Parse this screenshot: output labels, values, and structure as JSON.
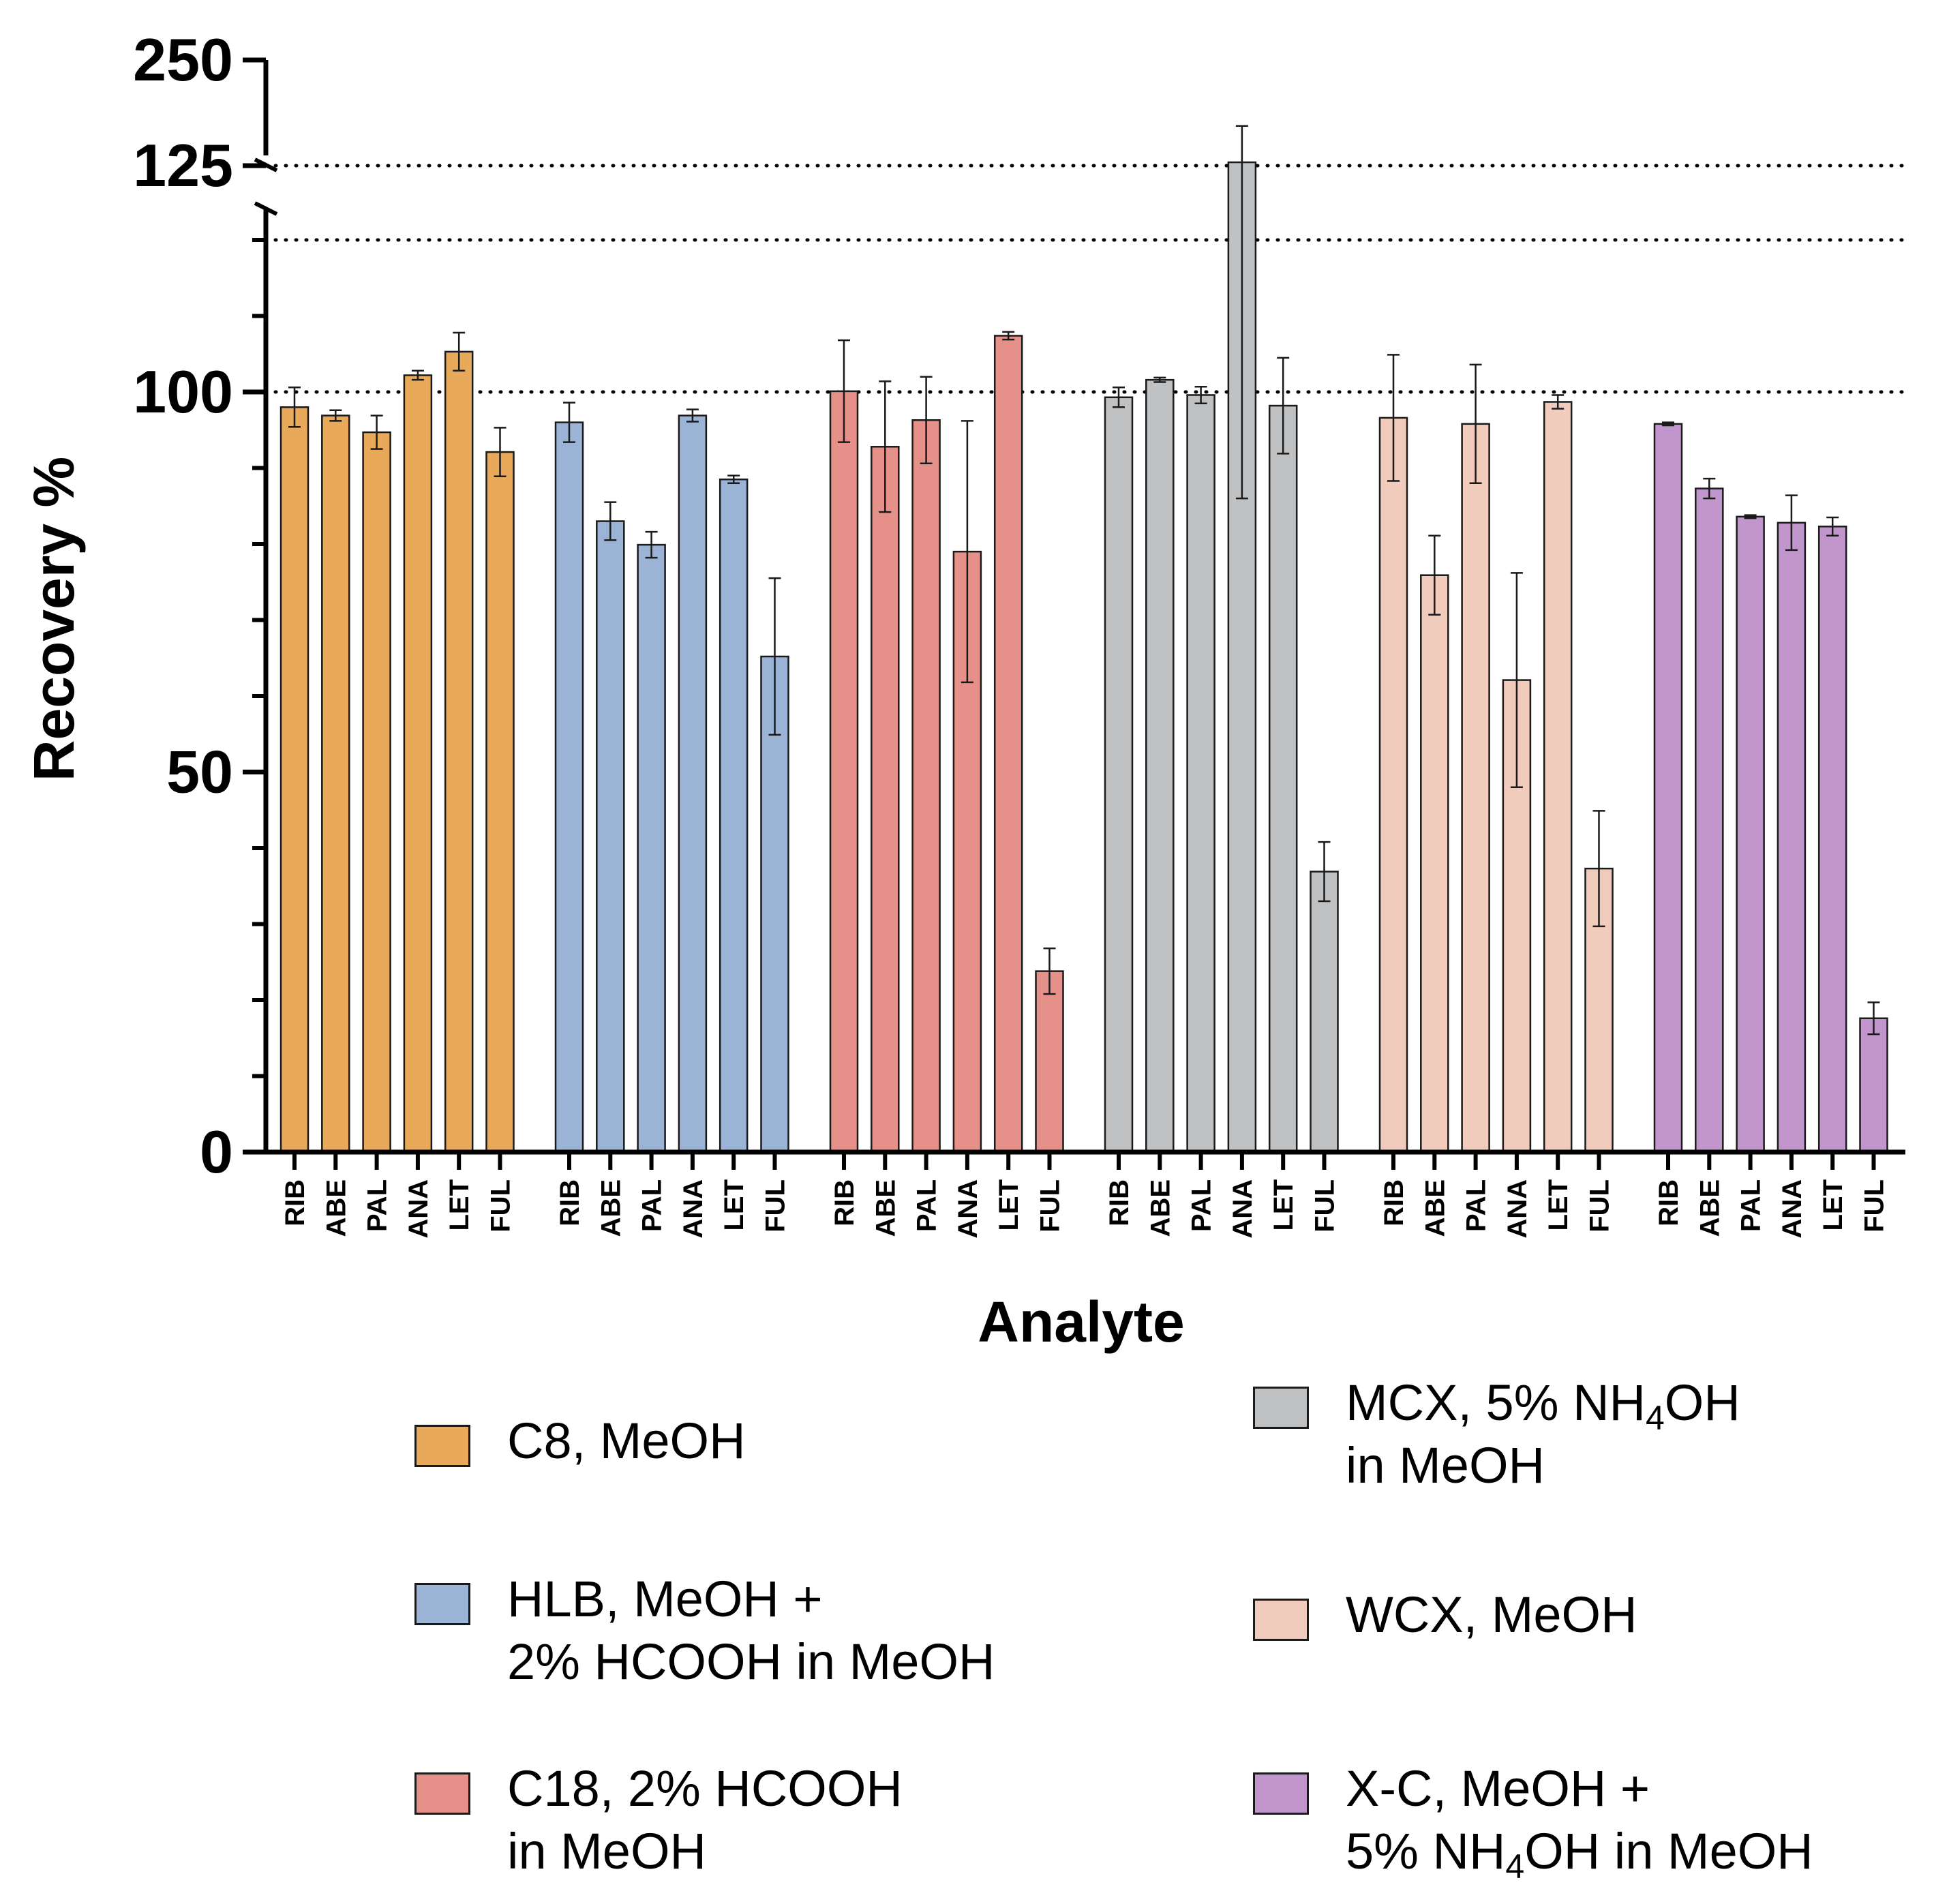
{
  "chart_data": {
    "type": "bar",
    "ylabel": "Recovery %",
    "xlabel": "Analyte",
    "y_axis": {
      "broken": true,
      "lower_range": [
        0,
        125
      ],
      "upper_range": [
        125,
        250
      ],
      "tick_labels": [
        "0",
        "50",
        "100",
        "125",
        "250"
      ],
      "reference_lines": [
        100,
        120,
        125
      ]
    },
    "categories": [
      "RIB",
      "ABE",
      "PAL",
      "ANA",
      "LET",
      "FUL"
    ],
    "series": [
      {
        "name": "C8, MeOH",
        "legend_lines": [
          "C8, MeOH"
        ],
        "color": "#E8A95B",
        "values": [
          98,
          96.9,
          94.7,
          102.2,
          105.3,
          92.1
        ],
        "errors": [
          2.6,
          0.7,
          2.2,
          0.6,
          2.5,
          3.2
        ]
      },
      {
        "name": "HLB, MeOH + 2% HCOOH in MeOH",
        "legend_lines": [
          "HLB, MeOH +",
          "2% HCOOH in MeOH"
        ],
        "color": "#9BB3D4",
        "values": [
          96,
          83,
          79.9,
          96.9,
          88.5,
          65.2
        ],
        "errors": [
          2.6,
          2.5,
          1.7,
          0.8,
          0.5,
          10.3
        ]
      },
      {
        "name": "C18, 2% HCOOH in MeOH",
        "legend_lines": [
          "C18, 2% HCOOH",
          "in MeOH"
        ],
        "color": "#E5918A",
        "values": [
          100.1,
          92.8,
          96.3,
          79,
          107.4,
          23.8
        ],
        "errors": [
          6.7,
          8.6,
          5.7,
          17.2,
          0.5,
          3
        ]
      },
      {
        "name": "MCX, 5% NH4OH in MeOH",
        "legend_lines": [
          "MCX, 5% NH4OH",
          "in MeOH"
        ],
        "color": "#BFC1C3",
        "values": [
          99.3,
          101.6,
          99.6,
          129,
          98.2,
          36.9
        ],
        "errors": [
          1.3,
          0.3,
          1.1,
          43,
          6.3,
          3.9
        ]
      },
      {
        "name": "WCX, MeOH",
        "legend_lines": [
          "WCX, MeOH"
        ],
        "color": "#F1CCBD",
        "values": [
          96.6,
          75.9,
          95.8,
          62.1,
          98.7,
          37.3
        ],
        "errors": [
          8.3,
          5.2,
          7.8,
          14.1,
          0.9,
          7.6
        ]
      },
      {
        "name": "X-C, MeOH + 5% NH4OH in MeOH",
        "legend_lines": [
          "X-C, MeOH +",
          "5% NH4OH in MeOH"
        ],
        "color": "#C196CC",
        "values": [
          95.8,
          87.3,
          83.6,
          82.8,
          82.3,
          17.6
        ],
        "errors": [
          0.2,
          1.3,
          0.2,
          3.6,
          1.2,
          2.1
        ]
      }
    ]
  }
}
